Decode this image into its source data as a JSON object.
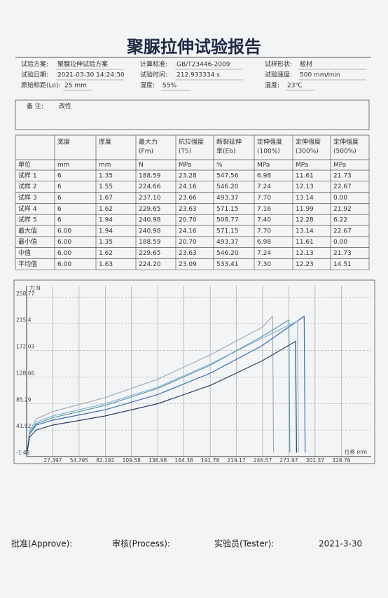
{
  "header": {
    "title": "聚脲拉伸试验报告"
  },
  "info": [
    [
      {
        "label": "试验方案:",
        "value": "聚脲拉伸试验方案"
      },
      {
        "label": "计算标准:",
        "value": "GB/T23446-2009"
      },
      {
        "label": "试样形状:",
        "value": "板材"
      }
    ],
    [
      {
        "label": "试验日期:",
        "value": "2021-03-30 14:24:30"
      },
      {
        "label": "试验时间:",
        "value": "212.933334 s"
      },
      {
        "label": "试验速度:",
        "value": "500 mm/min"
      }
    ],
    [
      {
        "label": "原始标距(Lo):",
        "value": "25 mm"
      },
      {
        "label": "湿度:",
        "value": "55%"
      },
      {
        "label": "温度:",
        "value": "23℃"
      }
    ]
  ],
  "remarks": {
    "label": "备 注:",
    "value": "改性"
  },
  "table": {
    "header": [
      [],
      [
        "宽度"
      ],
      [
        "厚度"
      ],
      [
        "最大力",
        "(Fm)"
      ],
      [
        "抗拉强度",
        "(TS)"
      ],
      [
        "断裂延伸",
        "率(Eb)"
      ],
      [
        "定伸强度",
        "(100%)"
      ],
      [
        "定伸强度",
        "(300%)"
      ],
      [
        "定伸强度",
        "(500%)"
      ]
    ],
    "units": [
      "单位",
      "mm",
      "mm",
      "N",
      "MPa",
      "%",
      "MPa",
      "MPa",
      "MPa"
    ],
    "rows": [
      [
        "试样 1",
        "6",
        "1.35",
        "188.59",
        "23.28",
        "547.56",
        "6.98",
        "11.61",
        "21.73"
      ],
      [
        "试样 2",
        "6",
        "1.55",
        "224.66",
        "24.16",
        "546.20",
        "7.24",
        "12.13",
        "22.67"
      ],
      [
        "试样 3",
        "6",
        "1.67",
        "237.10",
        "23.66",
        "493.37",
        "7.70",
        "13.14",
        "0.00"
      ],
      [
        "试样 4",
        "6",
        "1.62",
        "229.65",
        "23.63",
        "571.15",
        "7.16",
        "11.99",
        "21.92"
      ],
      [
        "试样 5",
        "6",
        "1.94",
        "240.98",
        "20.70",
        "508.77",
        "7.40",
        "12.28",
        "6.22"
      ],
      [
        "最大值",
        "6.00",
        "1.94",
        "240.98",
        "24.16",
        "571.15",
        "7.70",
        "13.14",
        "22.67"
      ],
      [
        "最小值",
        "6.00",
        "1.35",
        "188.59",
        "20.70",
        "493.37",
        "6.98",
        "11.61",
        "0.00"
      ],
      [
        "中值",
        "6.00",
        "1.62",
        "229.65",
        "23.63",
        "546.20",
        "7.24",
        "12.13",
        "21.73"
      ],
      [
        "平均值",
        "6.00",
        "1.63",
        "224.20",
        "23.09",
        "533.41",
        "7.30",
        "12.23",
        "14.51"
      ]
    ]
  },
  "chart": {
    "type": "line",
    "y_label": "力 N",
    "x_label": "位移 mm",
    "xlim": [
      0,
      360
    ],
    "ylim": [
      -1.45,
      278
    ],
    "xticks": [
      27.397,
      54.795,
      82.192,
      109.58,
      136.98,
      164.38,
      191.78,
      219.17,
      246.57,
      273.97,
      301.37,
      328.76
    ],
    "yticks": [
      -1.45,
      41.92,
      85.29,
      128.66,
      172.03,
      215.4,
      258.77
    ],
    "grid": true,
    "series": [
      {
        "color": "#a3acb3",
        "x": [
          0,
          3,
          10,
          27,
          82,
          137,
          192,
          246,
          257,
          258
        ],
        "values": [
          0,
          40,
          60,
          72,
          95,
          125,
          165,
          210,
          228,
          5
        ]
      },
      {
        "color": "#3a6fb0",
        "x": [
          0,
          3,
          10,
          27,
          82,
          137,
          192,
          246,
          290,
          291
        ],
        "values": [
          0,
          35,
          50,
          58,
          75,
          100,
          135,
          180,
          228,
          5
        ]
      },
      {
        "color": "#8fb5d8",
        "x": [
          0,
          3,
          10,
          27,
          82,
          137,
          192,
          246,
          283,
          284
        ],
        "values": [
          0,
          38,
          55,
          65,
          85,
          112,
          150,
          192,
          220,
          5
        ]
      },
      {
        "color": "#5a9aa8",
        "x": [
          0,
          3,
          10,
          27,
          82,
          137,
          192,
          246,
          274,
          275
        ],
        "values": [
          0,
          36,
          52,
          62,
          82,
          110,
          148,
          195,
          222,
          5
        ]
      },
      {
        "color": "#2c3e66",
        "x": [
          0,
          3,
          10,
          27,
          82,
          137,
          192,
          246,
          281,
          282
        ],
        "values": [
          0,
          30,
          42,
          50,
          65,
          85,
          115,
          155,
          187,
          5
        ]
      }
    ]
  },
  "footer": [
    "批准(Approve):",
    "审核(Process):",
    "实验员(Tester):",
    "2021-3-30"
  ]
}
